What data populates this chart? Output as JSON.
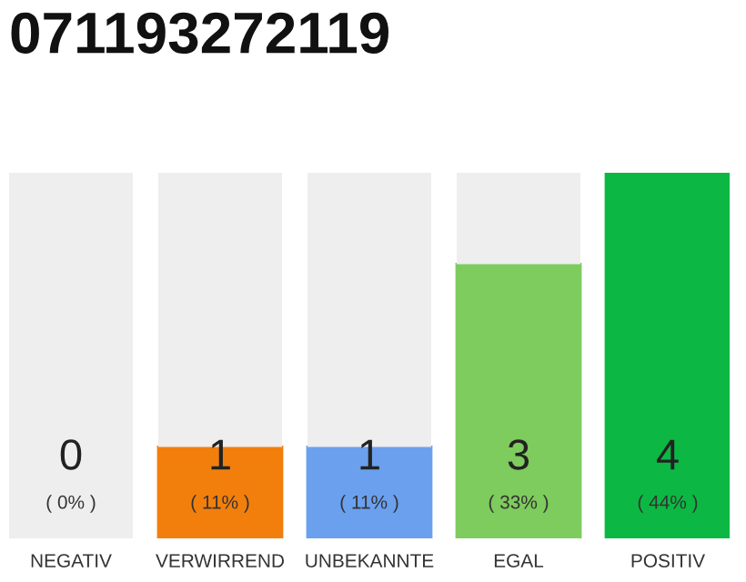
{
  "chart_data": {
    "type": "bar",
    "title": "071193272119",
    "categories": [
      "NEGATIV",
      "VERWIRREND",
      "UNBEKANNTE",
      "EGAL",
      "POSITIV"
    ],
    "stacked": true,
    "series": [
      {
        "colors": [
          "#666666",
          "#f27f0c",
          "#6aa0ee",
          "#7ecb5e",
          "#0cb843"
        ],
        "values": [
          0,
          1,
          1,
          3,
          4
        ],
        "value_labels": [
          "0",
          "1",
          "1",
          "3",
          "4"
        ]
      },
      {
        "color": "#eeeeee",
        "values": [
          4,
          3,
          3,
          1,
          0
        ]
      }
    ],
    "ylim": [
      0,
      4
    ],
    "annotations": [
      "( 0% )",
      "( 11% )",
      "( 11% )",
      "( 33% )",
      "( 44% )"
    ],
    "grid": false,
    "legend": false
  }
}
